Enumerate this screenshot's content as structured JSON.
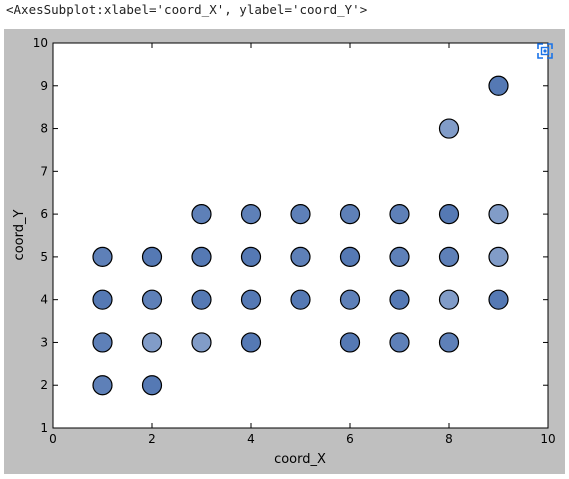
{
  "repr_text": "<AxesSubplot:xlabel='coord_X', ylabel='coord_Y'>",
  "expand_icon": "fullscreen-icon",
  "colors": {
    "figure_bg": "#bfbfbf",
    "axes_bg": "#ffffff",
    "marker_fill": "#4c72b0",
    "marker_edge": "#000000",
    "icon": "#1a73e8"
  },
  "chart_data": {
    "type": "scatter",
    "title": "",
    "xlabel": "coord_X",
    "ylabel": "coord_Y",
    "xlim": [
      0,
      10
    ],
    "ylim": [
      1,
      10
    ],
    "xticks": [
      0,
      2,
      4,
      6,
      8,
      10
    ],
    "yticks": [
      1,
      2,
      3,
      4,
      5,
      6,
      7,
      8,
      9,
      10
    ],
    "grid": false,
    "points": [
      {
        "x": 1,
        "y": 2,
        "alpha": 0.9
      },
      {
        "x": 1,
        "y": 3,
        "alpha": 0.9
      },
      {
        "x": 1,
        "y": 4,
        "alpha": 0.95
      },
      {
        "x": 1,
        "y": 5,
        "alpha": 0.9
      },
      {
        "x": 2,
        "y": 2,
        "alpha": 0.95
      },
      {
        "x": 2,
        "y": 3,
        "alpha": 0.7
      },
      {
        "x": 2,
        "y": 4,
        "alpha": 0.9
      },
      {
        "x": 2,
        "y": 5,
        "alpha": 0.95
      },
      {
        "x": 3,
        "y": 3,
        "alpha": 0.7
      },
      {
        "x": 3,
        "y": 4,
        "alpha": 0.95
      },
      {
        "x": 3,
        "y": 5,
        "alpha": 0.95
      },
      {
        "x": 3,
        "y": 6,
        "alpha": 0.9
      },
      {
        "x": 4,
        "y": 3,
        "alpha": 0.95
      },
      {
        "x": 4,
        "y": 4,
        "alpha": 0.95
      },
      {
        "x": 4,
        "y": 5,
        "alpha": 0.95
      },
      {
        "x": 4,
        "y": 6,
        "alpha": 0.9
      },
      {
        "x": 5,
        "y": 4,
        "alpha": 0.95
      },
      {
        "x": 5,
        "y": 5,
        "alpha": 0.9
      },
      {
        "x": 5,
        "y": 6,
        "alpha": 0.9
      },
      {
        "x": 6,
        "y": 3,
        "alpha": 0.95
      },
      {
        "x": 6,
        "y": 4,
        "alpha": 0.9
      },
      {
        "x": 6,
        "y": 5,
        "alpha": 0.95
      },
      {
        "x": 6,
        "y": 6,
        "alpha": 0.9
      },
      {
        "x": 7,
        "y": 3,
        "alpha": 0.9
      },
      {
        "x": 7,
        "y": 4,
        "alpha": 0.95
      },
      {
        "x": 7,
        "y": 5,
        "alpha": 0.9
      },
      {
        "x": 7,
        "y": 6,
        "alpha": 0.9
      },
      {
        "x": 8,
        "y": 3,
        "alpha": 0.9
      },
      {
        "x": 8,
        "y": 4,
        "alpha": 0.7
      },
      {
        "x": 8,
        "y": 5,
        "alpha": 0.9
      },
      {
        "x": 8,
        "y": 6,
        "alpha": 0.95
      },
      {
        "x": 8,
        "y": 8,
        "alpha": 0.7
      },
      {
        "x": 9,
        "y": 4,
        "alpha": 0.95
      },
      {
        "x": 9,
        "y": 5,
        "alpha": 0.7
      },
      {
        "x": 9,
        "y": 6,
        "alpha": 0.7
      },
      {
        "x": 9,
        "y": 9,
        "alpha": 0.95
      }
    ]
  }
}
